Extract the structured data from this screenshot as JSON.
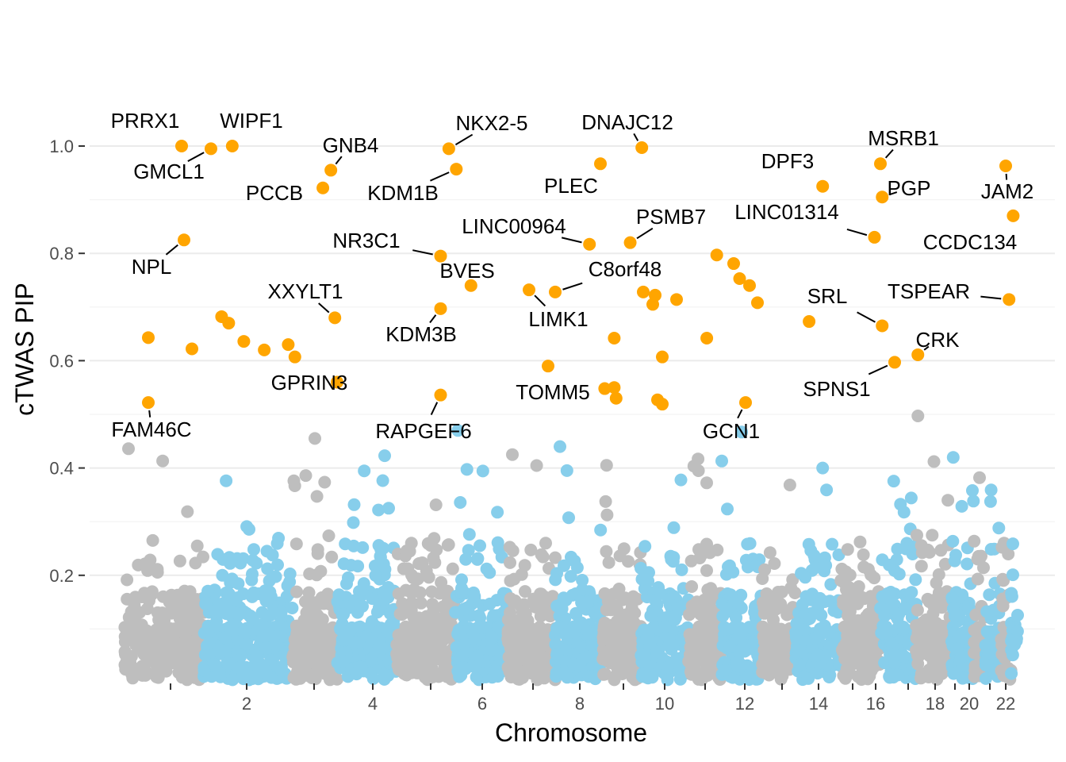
{
  "chart_data": {
    "type": "scatter",
    "title": "",
    "xlabel": "Chromosome",
    "ylabel": "cTWAS PIP",
    "ylim": [
      0,
      1.06
    ],
    "y_ticks": [
      "0.2",
      "0.4",
      "0.6",
      "0.8",
      "1.0"
    ],
    "y_tick_values": [
      0.2,
      0.4,
      0.6,
      0.8,
      1.0
    ],
    "x_ticks": [
      "1",
      "2",
      "3",
      "4",
      "5",
      "6",
      "7",
      "8",
      "9",
      "10",
      "11",
      "12",
      "13",
      "14",
      "15",
      "16",
      "17",
      "18",
      "19",
      "20",
      "21",
      "22"
    ],
    "x_tick_labels_shown": [
      "",
      "2",
      "",
      "4",
      "",
      "6",
      "",
      "8",
      "",
      "10",
      "",
      "12",
      "",
      "14",
      "",
      "16",
      "",
      "18",
      "",
      "20",
      "",
      "22"
    ],
    "colors": {
      "significant": "#FFA500",
      "odd_chromosome": "#BEBEBE",
      "even_chromosome": "#87CEEB"
    },
    "significance_threshold": 0.5,
    "highlighted_genes": [
      {
        "gene": "PRRX1",
        "chr": 1,
        "pos": 0.72,
        "pip": 1.0
      },
      {
        "gene": "GMCL1",
        "chr": 2,
        "pos": 0.08,
        "pip": 0.995
      },
      {
        "gene": "WIPF1",
        "chr": 2,
        "pos": 0.32,
        "pip": 1.0
      },
      {
        "gene": "GNB4",
        "chr": 3,
        "pos": 0.86,
        "pip": 0.955
      },
      {
        "gene": "PCCB",
        "chr": 3,
        "pos": 0.68,
        "pip": 0.922
      },
      {
        "gene": "NPL",
        "chr": 1,
        "pos": 0.75,
        "pip": 0.825
      },
      {
        "gene": "XXYLT1",
        "chr": 3,
        "pos": 0.95,
        "pip": 0.68
      },
      {
        "gene": "GPRIN3",
        "chr": 4,
        "pos": 0.0,
        "pip": 0.56
      },
      {
        "gene": "FAM46C",
        "chr": 1,
        "pos": 0.3,
        "pip": 0.522
      },
      {
        "gene": "NKX2-5",
        "chr": 5,
        "pos": 0.89,
        "pip": 0.995
      },
      {
        "gene": "KDM1B",
        "chr": 6,
        "pos": 0.02,
        "pip": 0.957
      },
      {
        "gene": "NR3C1",
        "chr": 5,
        "pos": 0.75,
        "pip": 0.795
      },
      {
        "gene": "BVES",
        "chr": 6,
        "pos": 0.3,
        "pip": 0.74
      },
      {
        "gene": "KDM3B",
        "chr": 5,
        "pos": 0.75,
        "pip": 0.697
      },
      {
        "gene": "RAPGEF6",
        "chr": 5,
        "pos": 0.75,
        "pip": 0.536
      },
      {
        "gene": "DNAJC12",
        "chr": 10,
        "pos": 0.02,
        "pip": 0.997
      },
      {
        "gene": "PLEC",
        "chr": 8,
        "pos": 0.95,
        "pip": 0.967
      },
      {
        "gene": "LINC00964",
        "chr": 8,
        "pos": 0.72,
        "pip": 0.817
      },
      {
        "gene": "PSMB7",
        "chr": 9,
        "pos": 0.72,
        "pip": 0.82
      },
      {
        "gene": "C8orf48",
        "chr": 8,
        "pos": 0.0,
        "pip": 0.728
      },
      {
        "gene": "LIMK1",
        "chr": 7,
        "pos": 0.45,
        "pip": 0.732
      },
      {
        "gene": "TOMM5",
        "chr": 9,
        "pos": 0.05,
        "pip": 0.548
      },
      {
        "gene": "GCN1",
        "chr": 12,
        "pos": 0.6,
        "pip": 0.522
      },
      {
        "gene": "DPF3",
        "chr": 14,
        "pos": 0.6,
        "pip": 0.925
      },
      {
        "gene": "LINC01314",
        "chr": 15,
        "pos": 0.85,
        "pip": 0.83
      },
      {
        "gene": "MSRB1",
        "chr": 16,
        "pos": 0.0,
        "pip": 0.967
      },
      {
        "gene": "PGP",
        "chr": 16,
        "pos": 0.05,
        "pip": 0.905
      },
      {
        "gene": "SRL",
        "chr": 16,
        "pos": 0.05,
        "pip": 0.665
      },
      {
        "gene": "SPNS1",
        "chr": 16,
        "pos": 0.4,
        "pip": 0.597
      },
      {
        "gene": "CRK",
        "chr": 17,
        "pos": 0.05,
        "pip": 0.611
      },
      {
        "gene": "JAM2",
        "chr": 21,
        "pos": 0.5,
        "pip": 0.963
      },
      {
        "gene": "CCDC134",
        "chr": 22,
        "pos": 0.3,
        "pip": 0.87
      },
      {
        "gene": "TSPEAR",
        "chr": 21,
        "pos": 0.8,
        "pip": 0.714
      }
    ],
    "other_significant_points": [
      {
        "chr": 1,
        "pos": 0.3,
        "pip": 0.643
      },
      {
        "chr": 1,
        "pos": 0.85,
        "pip": 0.622
      },
      {
        "chr": 2,
        "pos": 0.2,
        "pip": 0.682
      },
      {
        "chr": 2,
        "pos": 0.28,
        "pip": 0.67
      },
      {
        "chr": 2,
        "pos": 0.45,
        "pip": 0.636
      },
      {
        "chr": 2,
        "pos": 0.68,
        "pip": 0.62
      },
      {
        "chr": 2,
        "pos": 0.95,
        "pip": 0.63
      },
      {
        "chr": 3,
        "pos": 0.05,
        "pip": 0.607
      },
      {
        "chr": 7,
        "pos": 0.85,
        "pip": 0.59
      },
      {
        "chr": 9,
        "pos": 0.3,
        "pip": 0.55
      },
      {
        "chr": 9,
        "pos": 0.35,
        "pip": 0.53
      },
      {
        "chr": 9,
        "pos": 0.3,
        "pip": 0.642
      },
      {
        "chr": 10,
        "pos": 0.05,
        "pip": 0.728
      },
      {
        "chr": 10,
        "pos": 0.25,
        "pip": 0.705
      },
      {
        "chr": 10,
        "pos": 0.3,
        "pip": 0.722
      },
      {
        "chr": 10,
        "pos": 0.45,
        "pip": 0.607
      },
      {
        "chr": 10,
        "pos": 0.35,
        "pip": 0.527
      },
      {
        "chr": 10,
        "pos": 0.45,
        "pip": 0.519
      },
      {
        "chr": 10,
        "pos": 0.75,
        "pip": 0.714
      },
      {
        "chr": 11,
        "pos": 0.55,
        "pip": 0.642
      },
      {
        "chr": 11,
        "pos": 0.85,
        "pip": 0.797
      },
      {
        "chr": 12,
        "pos": 0.3,
        "pip": 0.781
      },
      {
        "chr": 12,
        "pos": 0.45,
        "pip": 0.753
      },
      {
        "chr": 12,
        "pos": 0.7,
        "pip": 0.74
      },
      {
        "chr": 12,
        "pos": 0.9,
        "pip": 0.708
      },
      {
        "chr": 14,
        "pos": 0.3,
        "pip": 0.673
      }
    ],
    "background_series": {
      "name": "non-significant genes",
      "description": "thousands of genes with PIP mostly below 0.2 and a few up to about 0.5, colored grey (odd chromosomes) and light blue (even chromosomes)",
      "max_pip": 0.497
    }
  }
}
